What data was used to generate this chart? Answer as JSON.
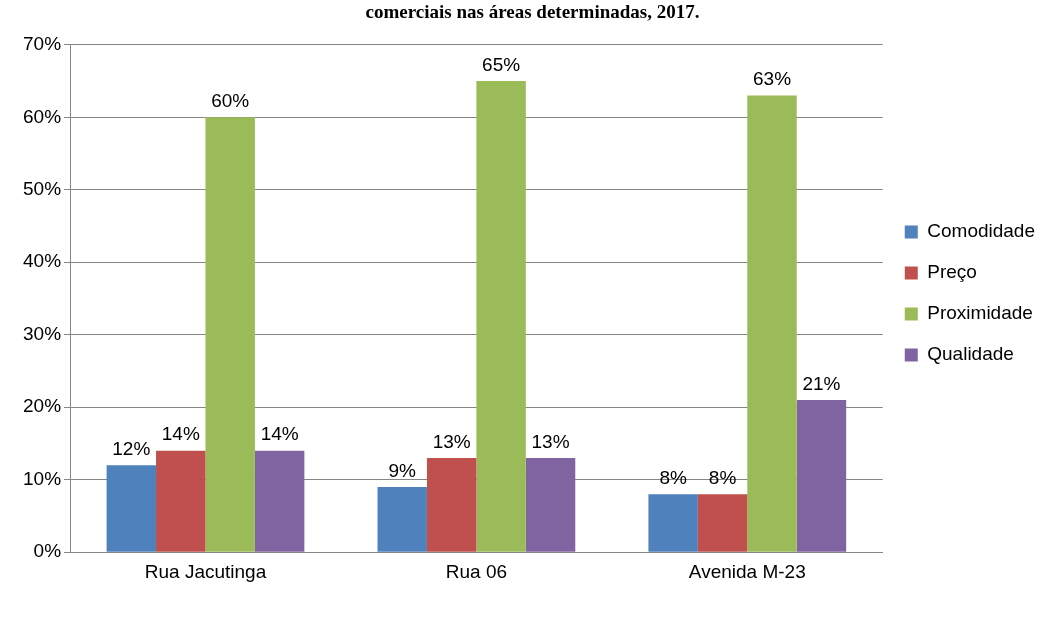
{
  "chart_data": {
    "type": "bar",
    "title": "comerciais nas áreas determinadas, 2017.",
    "categories": [
      "Rua Jacutinga",
      "Rua 06",
      "Avenida M-23"
    ],
    "series": [
      {
        "name": "Comodidade",
        "color": "#4f81bd",
        "values": [
          12,
          9,
          8
        ],
        "value_labels": [
          "12%",
          "9%",
          "8%"
        ]
      },
      {
        "name": "Preço",
        "color": "#c0504d",
        "values": [
          14,
          13,
          8
        ],
        "value_labels": [
          "14%",
          "13%",
          "8%"
        ]
      },
      {
        "name": "Proximidade",
        "color": "#9bbb59",
        "values": [
          60,
          65,
          63
        ],
        "value_labels": [
          "60%",
          "65%",
          "63%"
        ]
      },
      {
        "name": "Qualidade",
        "color": "#8064a2",
        "values": [
          14,
          13,
          21
        ],
        "value_labels": [
          "14%",
          "13%",
          "21%"
        ]
      }
    ],
    "ylim": [
      0,
      70
    ],
    "yticks": [
      {
        "value": 0,
        "label": "0%"
      },
      {
        "value": 10,
        "label": "10%"
      },
      {
        "value": 20,
        "label": "20%"
      },
      {
        "value": 30,
        "label": "30%"
      },
      {
        "value": 40,
        "label": "40%"
      },
      {
        "value": 50,
        "label": "50%"
      },
      {
        "value": 60,
        "label": "60%"
      },
      {
        "value": 70,
        "label": "70%"
      }
    ],
    "grid": "y",
    "legend": "right"
  }
}
